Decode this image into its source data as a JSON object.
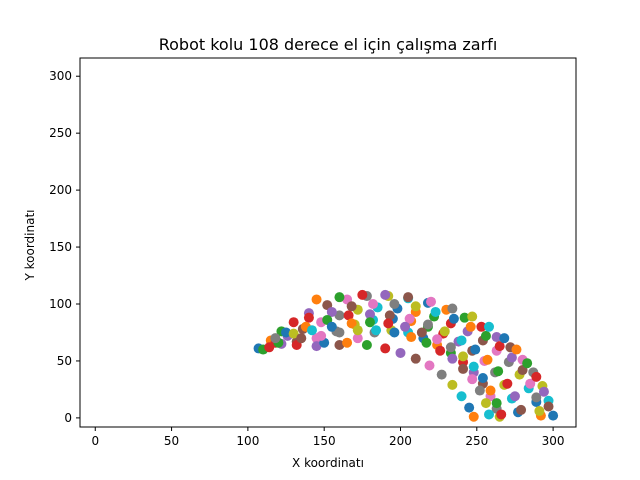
{
  "chart_data": {
    "type": "scatter",
    "title": "Robot kolu 108 derece el için çalışma zarfı",
    "xlabel": "X koordinatı",
    "ylabel": "Y koordinatı",
    "xlim": [
      -10,
      315
    ],
    "ylim": [
      -8,
      316
    ],
    "xticks": [
      0,
      50,
      100,
      150,
      200,
      250,
      300
    ],
    "yticks": [
      0,
      50,
      100,
      150,
      200,
      250,
      300
    ],
    "grid": false,
    "legend": "none",
    "palette": [
      "#1f77b4",
      "#ff7f0e",
      "#2ca02c",
      "#d62728",
      "#9467bd",
      "#8c564b",
      "#e377c2",
      "#7f7f7f",
      "#bcbd22",
      "#17becf"
    ],
    "series": [
      {
        "points": [
          [
            107,
            61
          ],
          [
            115,
            68
          ],
          [
            122,
            76
          ],
          [
            130,
            84
          ],
          [
            140,
            92
          ],
          [
            152,
            99
          ],
          [
            165,
            104
          ],
          [
            178,
            107
          ],
          [
            192,
            107
          ],
          [
            205,
            105
          ],
          [
            218,
            101
          ],
          [
            230,
            95
          ],
          [
            242,
            88
          ],
          [
            253,
            80
          ],
          [
            263,
            71
          ],
          [
            272,
            62
          ],
          [
            280,
            51
          ],
          [
            287,
            40
          ],
          [
            293,
            28
          ],
          [
            297,
            15
          ],
          [
            300,
            2
          ]
        ]
      },
      {
        "points": [
          [
            110,
            60
          ],
          [
            118,
            66
          ],
          [
            126,
            72
          ],
          [
            136,
            78
          ],
          [
            148,
            84
          ],
          [
            160,
            90
          ],
          [
            172,
            95
          ],
          [
            185,
            97
          ],
          [
            198,
            96
          ],
          [
            210,
            93
          ],
          [
            222,
            89
          ],
          [
            233,
            83
          ],
          [
            244,
            76
          ],
          [
            254,
            68
          ],
          [
            263,
            59
          ],
          [
            271,
            49
          ],
          [
            278,
            38
          ],
          [
            284,
            26
          ],
          [
            289,
            14
          ],
          [
            292,
            2
          ]
        ]
      },
      {
        "points": [
          [
            114,
            62
          ],
          [
            122,
            65
          ],
          [
            132,
            67
          ],
          [
            145,
            70
          ],
          [
            158,
            76
          ],
          [
            170,
            82
          ],
          [
            182,
            86
          ],
          [
            195,
            87
          ],
          [
            207,
            85
          ],
          [
            218,
            80
          ],
          [
            228,
            74
          ],
          [
            238,
            67
          ],
          [
            247,
            59
          ],
          [
            255,
            50
          ],
          [
            262,
            40
          ],
          [
            268,
            29
          ],
          [
            273,
            17
          ],
          [
            277,
            5
          ]
        ]
      },
      {
        "points": [
          [
            120,
            66
          ],
          [
            132,
            64
          ],
          [
            145,
            63
          ],
          [
            160,
            64
          ],
          [
            172,
            70
          ],
          [
            183,
            75
          ],
          [
            194,
            77
          ],
          [
            205,
            75
          ],
          [
            215,
            70
          ],
          [
            224,
            64
          ],
          [
            233,
            57
          ],
          [
            241,
            49
          ],
          [
            248,
            40
          ],
          [
            254,
            30
          ],
          [
            259,
            19
          ],
          [
            263,
            8
          ],
          [
            265,
            1
          ]
        ]
      },
      {
        "points": [
          [
            150,
            66
          ],
          [
            165,
            66
          ],
          [
            178,
            64
          ],
          [
            190,
            61
          ],
          [
            200,
            57
          ],
          [
            210,
            52
          ],
          [
            219,
            46
          ],
          [
            227,
            38
          ],
          [
            234,
            29
          ],
          [
            240,
            19
          ],
          [
            245,
            9
          ],
          [
            248,
            1
          ]
        ]
      },
      {
        "points": [
          [
            140,
            88
          ],
          [
            155,
            93
          ],
          [
            168,
            98
          ],
          [
            182,
            100
          ],
          [
            196,
            100
          ],
          [
            210,
            98
          ],
          [
            223,
            93
          ],
          [
            235,
            87
          ],
          [
            246,
            80
          ],
          [
            256,
            72
          ],
          [
            265,
            63
          ],
          [
            273,
            53
          ],
          [
            280,
            42
          ],
          [
            285,
            30
          ],
          [
            289,
            18
          ],
          [
            291,
            6
          ]
        ]
      },
      {
        "points": [
          [
            125,
            75
          ],
          [
            138,
            80
          ],
          [
            152,
            86
          ],
          [
            166,
            90
          ],
          [
            180,
            91
          ],
          [
            193,
            90
          ],
          [
            206,
            87
          ],
          [
            218,
            82
          ],
          [
            229,
            76
          ],
          [
            240,
            68
          ],
          [
            249,
            60
          ],
          [
            257,
            51
          ],
          [
            264,
            41
          ],
          [
            270,
            30
          ],
          [
            275,
            19
          ],
          [
            279,
            7
          ]
        ]
      },
      {
        "points": [
          [
            118,
            70
          ],
          [
            130,
            74
          ],
          [
            142,
            77
          ],
          [
            155,
            80
          ],
          [
            168,
            83
          ],
          [
            180,
            84
          ],
          [
            192,
            83
          ],
          [
            203,
            80
          ],
          [
            214,
            75
          ],
          [
            224,
            69
          ],
          [
            233,
            62
          ],
          [
            241,
            54
          ],
          [
            248,
            45
          ],
          [
            254,
            35
          ],
          [
            259,
            24
          ],
          [
            263,
            13
          ],
          [
            266,
            3
          ]
        ]
      },
      {
        "points": [
          [
            135,
            70
          ],
          [
            148,
            72
          ],
          [
            160,
            75
          ],
          [
            172,
            77
          ],
          [
            184,
            77
          ],
          [
            196,
            75
          ],
          [
            207,
            71
          ],
          [
            217,
            66
          ],
          [
            226,
            59
          ],
          [
            234,
            52
          ],
          [
            241,
            43
          ],
          [
            247,
            34
          ],
          [
            252,
            24
          ],
          [
            256,
            13
          ],
          [
            258,
            3
          ]
        ]
      },
      {
        "points": [
          [
            145,
            104
          ],
          [
            160,
            106
          ],
          [
            175,
            108
          ],
          [
            190,
            108
          ],
          [
            205,
            106
          ],
          [
            220,
            102
          ],
          [
            234,
            96
          ],
          [
            247,
            89
          ],
          [
            258,
            80
          ],
          [
            268,
            70
          ],
          [
            276,
            60
          ],
          [
            283,
            48
          ],
          [
            289,
            36
          ],
          [
            294,
            23
          ],
          [
            297,
            10
          ]
        ]
      }
    ]
  }
}
